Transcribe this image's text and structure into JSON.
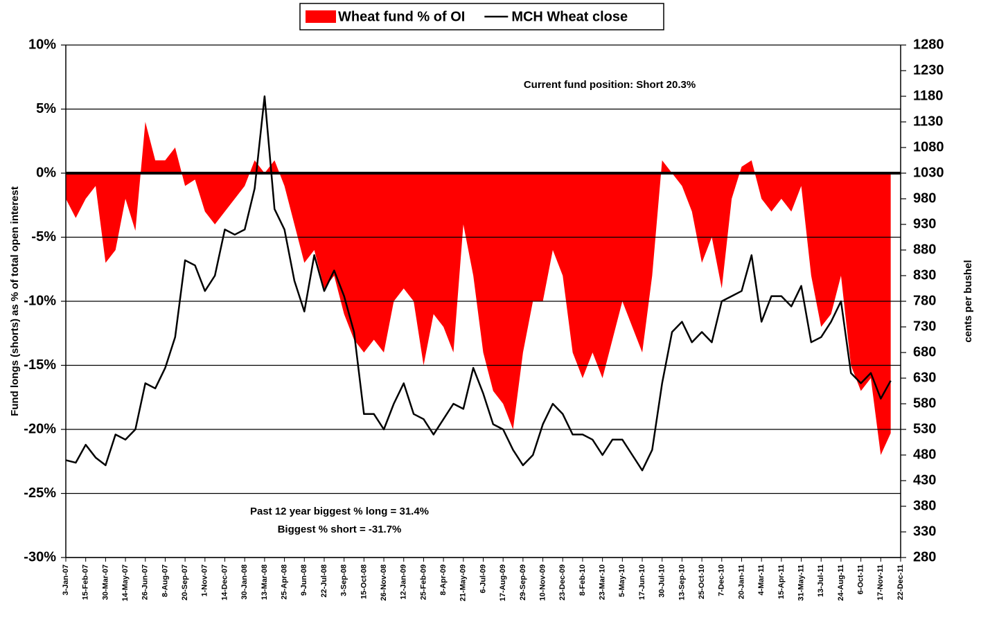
{
  "chart_data": {
    "type": "area-line",
    "annotations": [
      "Current fund position: Short 20.3%",
      "Past 12 year biggest % long = 31.4%",
      "Biggest % short = -31.7%"
    ],
    "ylabel": "Fund longs (shorts) as % of total open interest",
    "y2label": "cents per bushel",
    "legend": "top",
    "categories": [
      "3-Jan-07",
      null,
      "15-Feb-07",
      null,
      "30-Mar-07",
      null,
      "14-May-07",
      null,
      "26-Jun-07",
      null,
      "8-Aug-07",
      null,
      "20-Sep-07",
      null,
      "1-Nov-07",
      null,
      "14-Dec-07",
      null,
      "30-Jan-08",
      null,
      "13-Mar-08",
      null,
      "25-Apr-08",
      null,
      "9-Jun-08",
      null,
      "22-Jul-08",
      null,
      "3-Sep-08",
      null,
      "15-Oct-08",
      null,
      "26-Nov-08",
      null,
      "12-Jan-09",
      null,
      "25-Feb-09",
      null,
      "8-Apr-09",
      null,
      "21-May-09",
      null,
      "6-Jul-09",
      null,
      "17-Aug-09",
      null,
      "29-Sep-09",
      null,
      "10-Nov-09",
      null,
      "23-Dec-09",
      null,
      "8-Feb-10",
      null,
      "23-Mar-10",
      null,
      "5-May-10",
      null,
      "17-Jun-10",
      null,
      "30-Jul-10",
      null,
      "13-Sep-10",
      null,
      "25-Oct-10",
      null,
      "7-Dec-10",
      null,
      "20-Jan-11",
      null,
      "4-Mar-11",
      null,
      "15-Apr-11",
      null,
      "31-May-11",
      null,
      "13-Jul-11",
      null,
      "24-Aug-11",
      null,
      "6-Oct-11",
      null,
      "17-Nov-11",
      null,
      "22-Dec-11"
    ],
    "series": [
      {
        "name": "Wheat fund % of OI",
        "color": "#ff0000",
        "kind": "area",
        "values": [
          -2,
          -3.5,
          -2,
          -1,
          -7,
          -6,
          -2,
          -4.5,
          4,
          1,
          1,
          2,
          -1,
          -0.5,
          -3,
          -4,
          -3,
          -2,
          -1,
          1,
          0,
          1,
          -1,
          -4,
          -7,
          -6,
          -9,
          -8,
          -11,
          -13,
          -14,
          -13,
          -14,
          -10,
          -9,
          -10,
          -15,
          -11,
          -12,
          -14,
          -4,
          -8,
          -14,
          -17,
          -18,
          -20,
          -14,
          -10,
          -10,
          -6,
          -8,
          -14,
          -16,
          -14,
          -16,
          -13,
          -10,
          -12,
          -14,
          -8,
          1,
          0,
          -1,
          -3,
          -7,
          -5,
          -9,
          -2,
          0.5,
          1,
          -2,
          -3,
          -2,
          -3,
          -1,
          -8,
          -12,
          -11,
          -8,
          -15,
          -17,
          -16,
          -22,
          -20.3,
          null
        ]
      },
      {
        "name": "MCH Wheat close",
        "color": "#000000",
        "kind": "line",
        "axis": "y2",
        "values": [
          470,
          465,
          500,
          475,
          460,
          520,
          510,
          530,
          620,
          610,
          650,
          710,
          860,
          850,
          800,
          830,
          920,
          910,
          920,
          1000,
          1180,
          960,
          920,
          820,
          760,
          870,
          800,
          840,
          790,
          720,
          560,
          560,
          530,
          580,
          620,
          560,
          550,
          520,
          550,
          580,
          570,
          650,
          600,
          540,
          530,
          490,
          460,
          480,
          540,
          580,
          560,
          520,
          520,
          510,
          480,
          510,
          510,
          480,
          450,
          490,
          620,
          720,
          740,
          700,
          720,
          700,
          780,
          790,
          800,
          870,
          740,
          790,
          790,
          770,
          810,
          700,
          710,
          740,
          780,
          640,
          620,
          640,
          590,
          625,
          null
        ]
      }
    ],
    "ylim": [
      -30,
      10
    ],
    "yticks": [
      {
        "value": 10,
        "label": "10%"
      },
      {
        "value": 5,
        "label": "5%"
      },
      {
        "value": 0,
        "label": "0%"
      },
      {
        "value": -5,
        "label": "-5%"
      },
      {
        "value": -10,
        "label": "-10%"
      },
      {
        "value": -15,
        "label": "-15%"
      },
      {
        "value": -20,
        "label": "-20%"
      },
      {
        "value": -25,
        "label": "-25%"
      },
      {
        "value": -30,
        "label": "-30%"
      }
    ],
    "y2lim": [
      280,
      1280
    ],
    "y2ticks": [
      280,
      330,
      380,
      430,
      480,
      530,
      580,
      630,
      680,
      730,
      780,
      830,
      880,
      930,
      980,
      1030,
      1080,
      1130,
      1180,
      1230,
      1280
    ],
    "grid": true
  }
}
